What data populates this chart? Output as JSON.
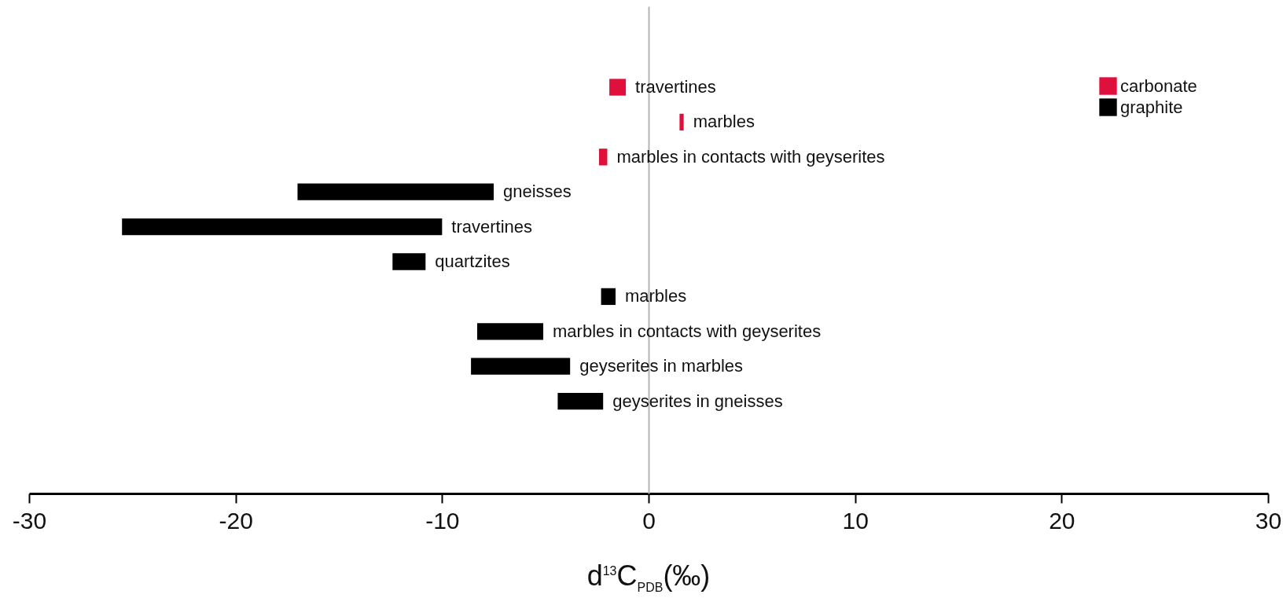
{
  "chart_data": {
    "type": "bar",
    "orientation": "horizontal",
    "xlabel": "d$^{13}$C$_{PDB}$(‰)",
    "categories": [
      "travertines",
      "marbles",
      "marbles  in contacts with geyserites",
      "gneisses",
      "travertines",
      "quartzites",
      "marbles",
      "marbles  in contacts with geyserites",
      "geyserites in marbles",
      "geyserites in gneisses"
    ],
    "series": [
      {
        "name": "carbonate",
        "color": "#e0103c",
        "base": [
          -1.9,
          1.5,
          -2.4,
          null,
          null,
          null,
          null,
          null,
          null,
          null
        ],
        "values": [
          0.8,
          0.2,
          0.4,
          null,
          null,
          null,
          null,
          null,
          null,
          null
        ]
      },
      {
        "name": "graphite",
        "color": "#000000",
        "base": [
          null,
          null,
          null,
          -17.0,
          -25.5,
          -12.4,
          -2.3,
          -8.3,
          -8.6,
          -4.4
        ],
        "values": [
          null,
          null,
          null,
          9.5,
          15.5,
          1.6,
          0.7,
          3.2,
          4.8,
          2.2
        ]
      }
    ],
    "xlim": [
      -30,
      30
    ],
    "xticks": [
      -30,
      -20,
      -10,
      0,
      10,
      20,
      30
    ],
    "legend": "top right",
    "grid": false
  }
}
